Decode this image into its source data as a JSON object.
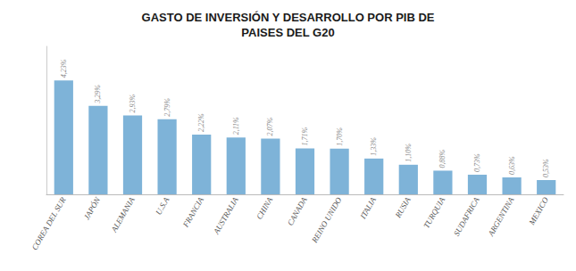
{
  "chart_data": {
    "type": "bar",
    "title": "GASTO DE INVERSIÓN Y DESARROLLO POR PIB DE\nPAISES DEL G20",
    "categories": [
      "COREA DEL SUR",
      "JAPÓN",
      "ALEMANIA",
      "U.S.A",
      "FRANCIA",
      "AUSTRALIA",
      "CHINA",
      "CANADA",
      "REINO UNIDO",
      "ITALIA",
      "RUSIA",
      "TURQUIA",
      "SUDAFRICA",
      "ARGENTINA",
      "MEXICO"
    ],
    "values": [
      4.23,
      3.29,
      2.93,
      2.79,
      2.22,
      2.11,
      2.07,
      1.71,
      1.7,
      1.33,
      1.1,
      0.88,
      0.73,
      0.63,
      0.53
    ],
    "value_labels": [
      "4,23%",
      "3,29%",
      "2,93%",
      "2,79%",
      "2,22%",
      "2,11%",
      "2,07%",
      "1,71%",
      "1,70%",
      "1,33%",
      "1,10%",
      "0,88%",
      "0,73%",
      "0,63%",
      "0,53%"
    ],
    "data_labels": true,
    "color": "#7EB3D8",
    "ylim": [
      0,
      5.5
    ],
    "tick_labels": "x",
    "grid": false
  }
}
